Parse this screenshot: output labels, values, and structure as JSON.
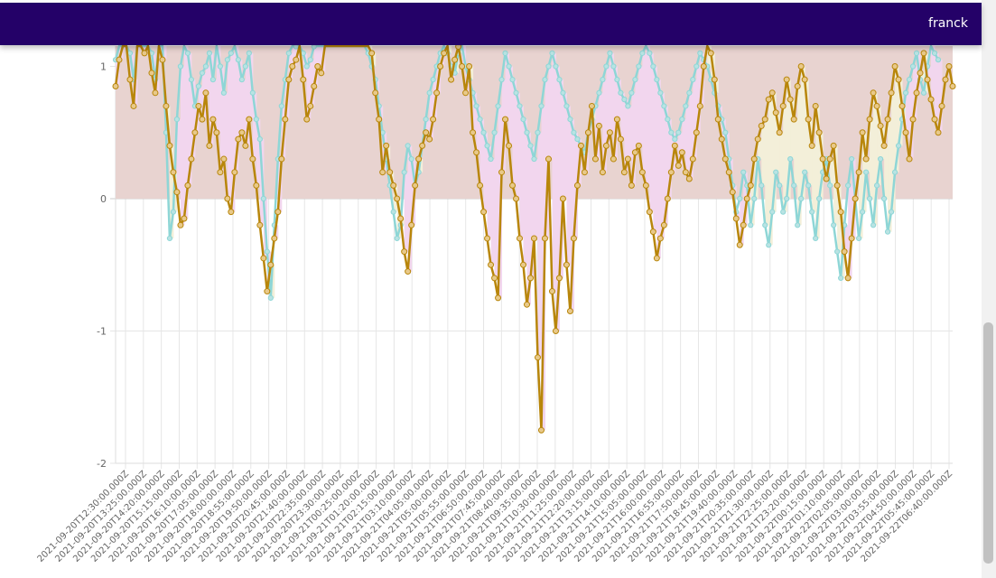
{
  "app": {
    "user_name": "franck",
    "colors": {
      "topbar": "#240168"
    }
  },
  "chart_data": {
    "type": "line",
    "title": "",
    "xlabel": "",
    "ylabel": "",
    "ylim": [
      -2,
      1
    ],
    "y_ticks": [
      1,
      0,
      -1,
      -2
    ],
    "x_tick_labels": [
      "2021-09-20T12:30:00.000Z",
      "2021-09-20T13:25:00.000Z",
      "2021-09-20T14:20:00.000Z",
      "2021-09-20T15:15:00.000Z",
      "2021-09-20T16:10:00.000Z",
      "2021-09-20T17:05:00.000Z",
      "2021-09-20T18:00:00.000Z",
      "2021-09-20T18:55:00.000Z",
      "2021-09-20T19:50:00.000Z",
      "2021-09-20T20:45:00.000Z",
      "2021-09-20T21:40:00.000Z",
      "2021-09-20T22:35:00.000Z",
      "2021-09-20T23:30:00.000Z",
      "2021-09-21T00:25:00.000Z",
      "2021-09-21T01:20:00.000Z",
      "2021-09-21T02:15:00.000Z",
      "2021-09-21T03:10:00.000Z",
      "2021-09-21T04:05:00.000Z",
      "2021-09-21T05:00:00.000Z",
      "2021-09-21T05:55:00.000Z",
      "2021-09-21T06:50:00.000Z",
      "2021-09-21T07:45:00.000Z",
      "2021-09-21T08:40:00.000Z",
      "2021-09-21T09:35:00.000Z",
      "2021-09-21T10:30:00.000Z",
      "2021-09-21T11:25:00.000Z",
      "2021-09-21T12:20:00.000Z",
      "2021-09-21T13:15:00.000Z",
      "2021-09-21T14:10:00.000Z",
      "2021-09-21T15:05:00.000Z",
      "2021-09-21T16:00:00.000Z",
      "2021-09-21T16:55:00.000Z",
      "2021-09-21T17:50:00.000Z",
      "2021-09-21T18:45:00.000Z",
      "2021-09-21T19:40:00.000Z",
      "2021-09-21T20:35:00.000Z",
      "2021-09-21T21:30:00.000Z",
      "2021-09-21T22:25:00.000Z",
      "2021-09-21T23:20:00.000Z",
      "2021-09-22T00:15:00.000Z",
      "2021-09-22T01:10:00.000Z",
      "2021-09-22T02:05:00.000Z",
      "2021-09-22T03:00:00.000Z",
      "2021-09-22T03:55:00.000Z",
      "2021-09-22T04:50:00.000Z",
      "2021-09-22T05:45:00.000Z",
      "2021-09-22T06:40:00.000Z"
    ],
    "series": [
      {
        "color": "#b8860b",
        "values": [
          0.85,
          1.05,
          1.3,
          1.2,
          0.9,
          0.7,
          1.2,
          1.5,
          1.1,
          1.4,
          0.95,
          0.8,
          1.2,
          1.05,
          0.7,
          0.4,
          0.2,
          0.05,
          -0.2,
          -0.15,
          0.1,
          0.3,
          0.5,
          0.7,
          0.6,
          0.8,
          0.4,
          0.6,
          0.5,
          0.2,
          0.3,
          0.0,
          -0.1,
          0.2,
          0.45,
          0.5,
          0.4,
          0.6,
          0.3,
          0.1,
          -0.2,
          -0.45,
          -0.7,
          -0.5,
          -0.3,
          -0.1,
          0.3,
          0.6,
          0.9,
          1.0,
          1.05,
          1.2,
          0.9,
          0.6,
          0.7,
          0.85,
          1.0,
          0.95,
          1.25,
          1.5,
          1.3,
          1.4,
          1.6,
          1.8,
          1.5,
          1.4,
          1.2,
          1.3,
          1.2,
          1.5,
          1.4,
          1.1,
          0.8,
          0.6,
          0.2,
          0.4,
          0.2,
          0.1,
          0.0,
          -0.15,
          -0.4,
          -0.55,
          -0.2,
          0.1,
          0.3,
          0.4,
          0.5,
          0.45,
          0.6,
          0.8,
          1.0,
          1.1,
          1.2,
          0.9,
          1.05,
          1.15,
          1.0,
          0.8,
          1.0,
          0.5,
          0.35,
          0.1,
          -0.1,
          -0.3,
          -0.5,
          -0.6,
          -0.75,
          0.2,
          0.6,
          0.4,
          0.1,
          0.0,
          -0.3,
          -0.5,
          -0.8,
          -0.6,
          -0.3,
          -1.2,
          -1.75,
          -0.3,
          0.3,
          -0.7,
          -1.0,
          -0.6,
          0.0,
          -0.5,
          -0.85,
          -0.3,
          0.1,
          0.4,
          0.2,
          0.5,
          0.7,
          0.3,
          0.55,
          0.2,
          0.4,
          0.5,
          0.3,
          0.6,
          0.45,
          0.2,
          0.3,
          0.1,
          0.35,
          0.4,
          0.2,
          0.1,
          -0.1,
          -0.25,
          -0.45,
          -0.3,
          -0.2,
          0.0,
          0.2,
          0.4,
          0.25,
          0.35,
          0.2,
          0.15,
          0.3,
          0.5,
          0.7,
          1.0,
          1.2,
          1.1,
          0.9,
          0.6,
          0.45,
          0.3,
          0.2,
          0.05,
          -0.15,
          -0.35,
          -0.2,
          0.0,
          0.1,
          0.3,
          0.45,
          0.55,
          0.6,
          0.75,
          0.8,
          0.65,
          0.5,
          0.7,
          0.9,
          0.75,
          0.6,
          0.85,
          1.0,
          0.9,
          0.6,
          0.4,
          0.7,
          0.5,
          0.3,
          0.15,
          0.3,
          0.4,
          0.1,
          -0.1,
          -0.4,
          -0.6,
          -0.3,
          0.0,
          0.2,
          0.5,
          0.3,
          0.6,
          0.8,
          0.7,
          0.55,
          0.4,
          0.6,
          0.8,
          1.0,
          0.9,
          0.7,
          0.5,
          0.3,
          0.6,
          0.8,
          0.95,
          1.1,
          0.9,
          0.75,
          0.6,
          0.5,
          0.7,
          0.9,
          1.0,
          0.85
        ]
      },
      {
        "color": "#8ed6d6",
        "values": [
          1.05,
          1.2,
          1.4,
          1.3,
          1.1,
          0.9,
          1.3,
          1.6,
          1.2,
          1.5,
          1.1,
          0.9,
          1.3,
          1.2,
          0.5,
          -0.3,
          -0.1,
          0.6,
          1.0,
          1.2,
          1.1,
          0.9,
          0.7,
          0.85,
          0.95,
          1.0,
          1.1,
          0.9,
          1.2,
          1.0,
          0.8,
          1.05,
          1.1,
          1.2,
          1.05,
          0.9,
          1.0,
          1.1,
          0.8,
          0.6,
          0.45,
          0.0,
          -0.4,
          -0.75,
          -0.2,
          0.3,
          0.7,
          0.9,
          1.1,
          1.2,
          1.15,
          1.3,
          1.1,
          1.0,
          1.05,
          1.15,
          1.25,
          1.2,
          1.3,
          1.4,
          1.35,
          1.4,
          1.5,
          1.6,
          1.4,
          1.3,
          1.35,
          1.45,
          1.3,
          1.2,
          1.1,
          1.0,
          0.9,
          0.7,
          0.5,
          0.3,
          0.1,
          -0.1,
          -0.3,
          -0.2,
          0.2,
          0.4,
          0.3,
          0.1,
          0.2,
          0.4,
          0.6,
          0.8,
          0.9,
          1.0,
          1.1,
          1.2,
          1.1,
          1.0,
          0.95,
          1.1,
          1.2,
          1.0,
          0.9,
          0.8,
          0.7,
          0.6,
          0.5,
          0.4,
          0.3,
          0.5,
          0.7,
          0.9,
          1.1,
          1.0,
          0.9,
          0.8,
          0.7,
          0.6,
          0.5,
          0.4,
          0.3,
          0.5,
          0.7,
          0.9,
          1.0,
          1.1,
          1.0,
          0.9,
          0.8,
          0.7,
          0.6,
          0.5,
          0.45,
          0.4,
          0.35,
          0.5,
          0.6,
          0.7,
          0.8,
          0.9,
          1.0,
          1.1,
          1.0,
          0.9,
          0.8,
          0.75,
          0.7,
          0.8,
          0.9,
          1.0,
          1.1,
          1.2,
          1.1,
          1.0,
          0.9,
          0.8,
          0.7,
          0.6,
          0.5,
          0.45,
          0.5,
          0.6,
          0.7,
          0.8,
          0.9,
          1.0,
          1.1,
          1.05,
          1.0,
          0.9,
          0.8,
          0.7,
          0.6,
          0.5,
          0.3,
          0.1,
          -0.1,
          0.0,
          0.2,
          0.1,
          -0.2,
          0.0,
          0.3,
          0.1,
          -0.2,
          -0.35,
          -0.1,
          0.2,
          0.1,
          -0.1,
          0.0,
          0.3,
          0.1,
          -0.2,
          0.0,
          0.2,
          0.1,
          -0.1,
          -0.3,
          0.0,
          0.2,
          0.3,
          0.1,
          -0.2,
          -0.4,
          -0.6,
          -0.2,
          0.1,
          0.3,
          0.0,
          -0.3,
          -0.1,
          0.2,
          0.0,
          -0.2,
          0.1,
          0.3,
          0.0,
          -0.25,
          -0.1,
          0.2,
          0.4,
          0.6,
          0.8,
          0.9,
          1.0,
          1.1,
          0.9,
          0.8,
          1.0,
          1.2,
          1.1,
          1.05
        ]
      }
    ]
  }
}
